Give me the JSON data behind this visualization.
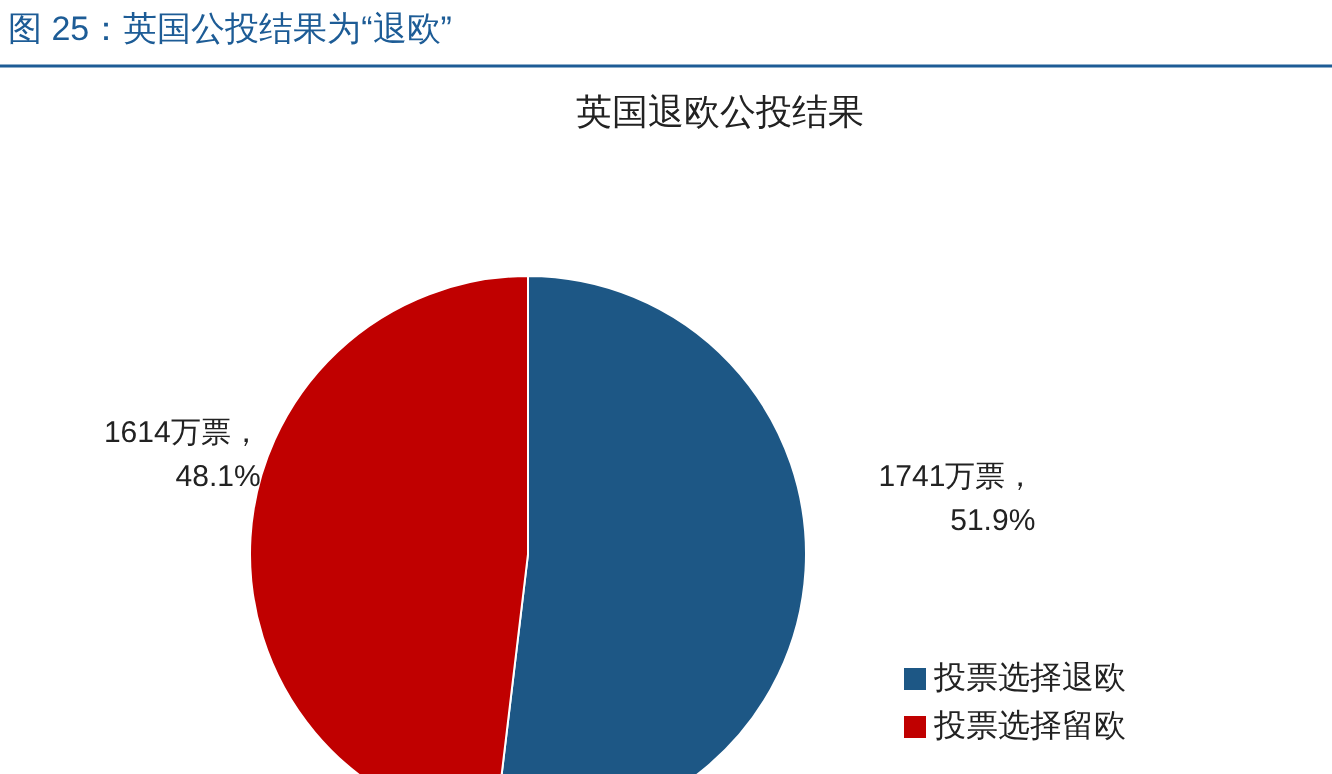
{
  "chart_data": {
    "type": "pie",
    "title": "图 25：英国公投结果为“退欧”",
    "subtitle": "英国退欧公投结果",
    "categories": [
      "投票选择退欧",
      "投票选择留欧"
    ],
    "values": [
      1741,
      1614
    ],
    "value_labels": [
      "1741万票，51.9%",
      "1614万票，48.1%"
    ],
    "colors": [
      "#1d5785",
      "#c00000"
    ],
    "legend": "right"
  }
}
